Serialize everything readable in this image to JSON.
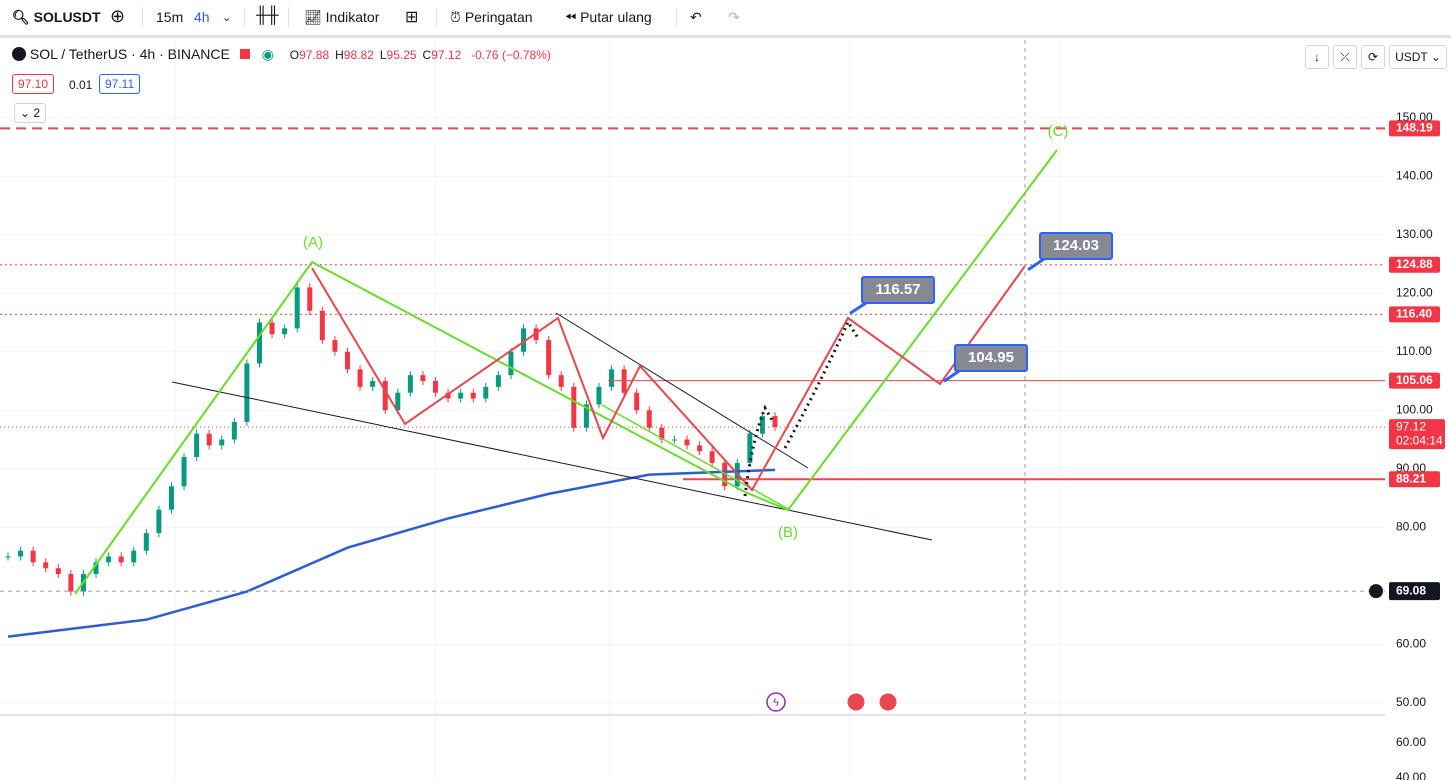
{
  "toolbar": {
    "symbol": "SOLUSDT",
    "intervals": [
      "15m",
      "4h"
    ],
    "indicators": "Indikator",
    "alerts": "Peringatan",
    "replay": "Putar ulang"
  },
  "legend": {
    "title": "SOL / TetherUS · 4h · BINANCE",
    "ohlc": [
      [
        "O",
        "97.88"
      ],
      [
        "H",
        "98.82"
      ],
      [
        "L",
        "95.25"
      ],
      [
        "C",
        "97.12"
      ]
    ],
    "change": "-0.76 (−0.78%)",
    "bid": "97.10",
    "spread": "0.01",
    "ask": "97.11",
    "collapsed": "2"
  },
  "currency": "USDT",
  "chart_data": {
    "type": "candlestick",
    "ylim": [
      47.9,
      163.3
    ],
    "yticks": [
      {
        "value": 150,
        "label": "150.00"
      },
      {
        "value": 140,
        "label": "140.00"
      },
      {
        "value": 130,
        "label": "130.00"
      },
      {
        "value": 120,
        "label": "120.00"
      },
      {
        "value": 110,
        "label": "110.00"
      },
      {
        "value": 100,
        "label": "100.00"
      },
      {
        "value": 90,
        "label": "90.00"
      },
      {
        "value": 80,
        "label": "80.00"
      },
      {
        "value": 60,
        "label": "60.00"
      },
      {
        "value": 50,
        "label": "50.00"
      }
    ],
    "closes": [
      75,
      76,
      74,
      73,
      72,
      69,
      72,
      74,
      75,
      74,
      76,
      79,
      83,
      87,
      92,
      96,
      94,
      95,
      98,
      108,
      115,
      113,
      114,
      121,
      117,
      112,
      110,
      107,
      104,
      105,
      100,
      103,
      106,
      105,
      103,
      102,
      103,
      102,
      104,
      106,
      110,
      114,
      112,
      106,
      104,
      97,
      101,
      104,
      107,
      103,
      100,
      97,
      95,
      95,
      94,
      93,
      91,
      87,
      91,
      96,
      99,
      97.12
    ],
    "ma": {
      "index": [
        0,
        11,
        19,
        27,
        35,
        43,
        51,
        61
      ],
      "values": [
        61.3,
        64.2,
        69,
        76.5,
        81.5,
        85.7,
        89,
        89.8
      ]
    },
    "levels": [
      {
        "value": 148.19,
        "label": "148.19",
        "style": "dashed"
      },
      {
        "value": 124.88,
        "label": "124.88",
        "style": "dotted"
      },
      {
        "value": 116.4,
        "label": "116.40",
        "style": "dotted"
      },
      {
        "value": 105.06,
        "label": "105.06",
        "style": "solid"
      },
      {
        "value": 88.21,
        "label": "88.21",
        "style": "solid"
      }
    ],
    "last": {
      "value": 97.12,
      "label": "97.12",
      "countdown": "02:04:14"
    },
    "crosshair": {
      "value": 69.08,
      "label": "69.08"
    },
    "annotations": [
      {
        "value": 116.57,
        "label": "116.57"
      },
      {
        "value": 104.95,
        "label": "104.95"
      },
      {
        "value": 124.03,
        "label": "124.03"
      }
    ],
    "waves": [
      "(A)",
      "(B)",
      "(C)"
    ]
  },
  "lower_pane": {
    "ticks": [
      "60.00",
      "40.00"
    ]
  }
}
